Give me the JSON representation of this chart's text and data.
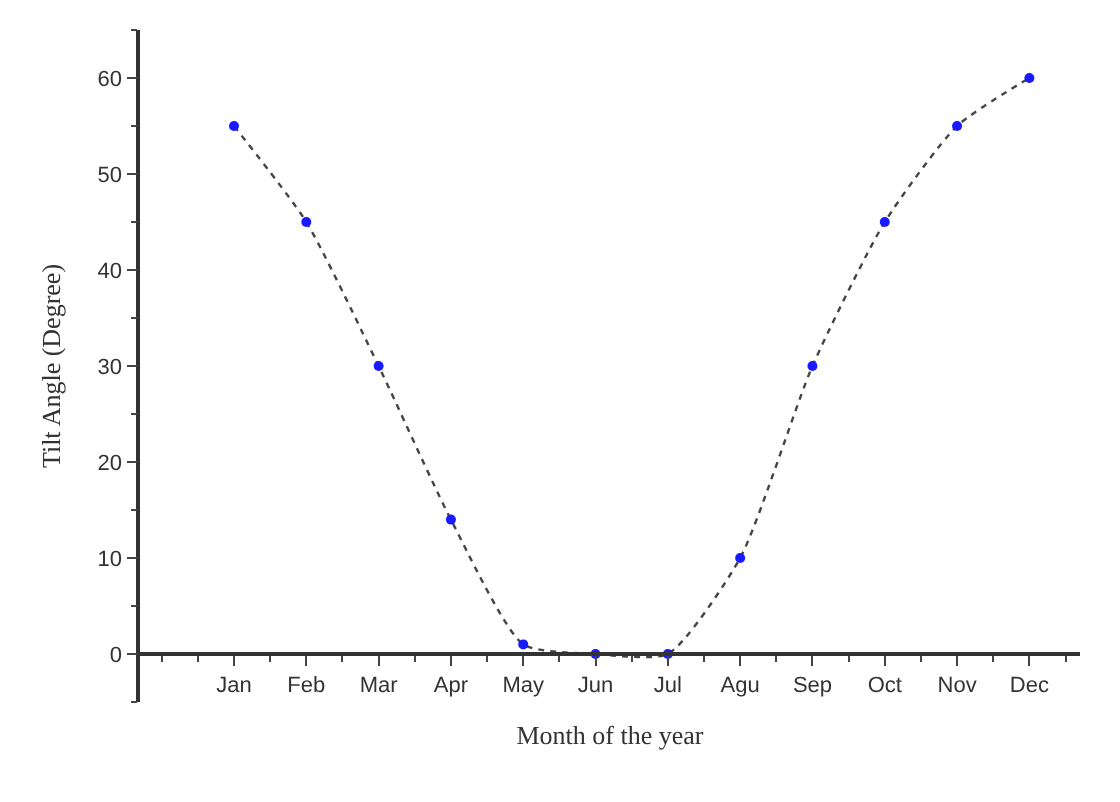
{
  "chart_data": {
    "type": "line",
    "xlabel": "Month of the year",
    "ylabel": "Tilt Angle (Degree)",
    "categories": [
      "Jan",
      "Feb",
      "Mar",
      "Apr",
      "May",
      "Jun",
      "Jul",
      "Agu",
      "Sep",
      "Oct",
      "Nov",
      "Dec"
    ],
    "series": [
      {
        "color": "#1a1aff",
        "values": [
          55,
          45,
          30,
          14,
          1,
          0,
          0,
          10,
          30,
          45,
          55,
          60
        ]
      }
    ],
    "ylim": [
      -5,
      65
    ],
    "yticks": [
      0,
      10,
      20,
      30,
      40,
      50,
      60
    ],
    "marker": "circle",
    "line_style": "dotted"
  }
}
